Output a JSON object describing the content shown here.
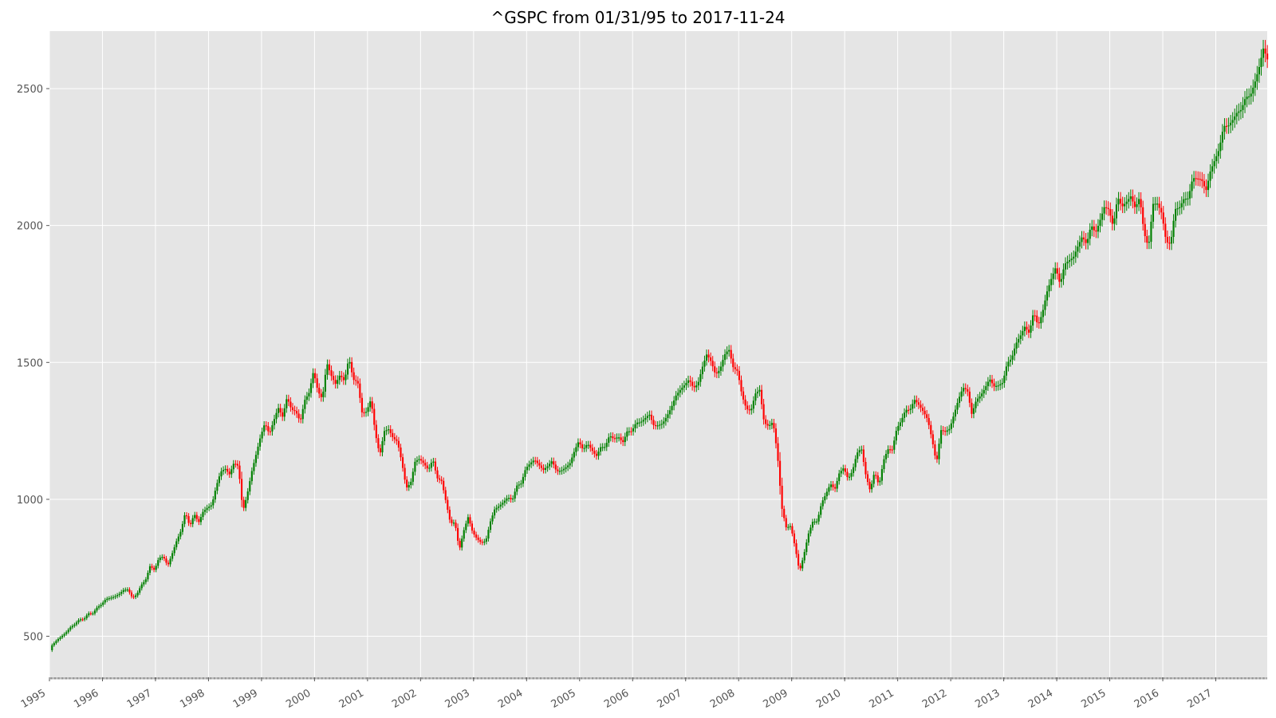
{
  "chart_data": {
    "type": "candlestick",
    "title": "^GSPC from 01/31/95 to 2017-11-24",
    "xlabel": "",
    "ylabel": "",
    "ylim": [
      350,
      2710
    ],
    "yticks": [
      500,
      1000,
      1500,
      2000,
      2500
    ],
    "xlim": [
      1995.0,
      2017.97
    ],
    "year_ticks": [
      "1995",
      "1996",
      "1997",
      "1998",
      "1999",
      "2000",
      "2001",
      "2002",
      "2003",
      "2004",
      "2005",
      "2006",
      "2007",
      "2008",
      "2009",
      "2010",
      "2011",
      "2012",
      "2013",
      "2014",
      "2015",
      "2016",
      "2017"
    ],
    "grid": true,
    "colors": {
      "up": "#008000",
      "down": "#ff0000",
      "background": "#e5e5e5",
      "grid": "#ffffff"
    },
    "monthly_close_estimate": [
      470,
      487,
      500,
      514,
      533,
      544,
      562,
      561,
      584,
      582,
      605,
      616,
      636,
      640,
      645,
      654,
      669,
      671,
      640,
      652,
      687,
      705,
      757,
      741,
      786,
      791,
      757,
      801,
      848,
      885,
      954,
      900,
      947,
      915,
      955,
      970,
      980,
      1049,
      1101,
      1112,
      1091,
      1134,
      1121,
      956,
      1018,
      1100,
      1164,
      1229,
      1279,
      1238,
      1287,
      1335,
      1301,
      1373,
      1328,
      1321,
      1283,
      1362,
      1389,
      1469,
      1394,
      1366,
      1499,
      1452,
      1421,
      1455,
      1431,
      1518,
      1437,
      1429,
      1315,
      1320,
      1366,
      1240,
      1160,
      1249,
      1256,
      1224,
      1211,
      1134,
      1041,
      1060,
      1139,
      1148,
      1130,
      1107,
      1147,
      1077,
      1067,
      990,
      912,
      916,
      815,
      885,
      936,
      880,
      856,
      841,
      848,
      917,
      964,
      975,
      990,
      1008,
      996,
      1050,
      1058,
      1112,
      1131,
      1145,
      1126,
      1107,
      1121,
      1141,
      1102,
      1104,
      1115,
      1130,
      1174,
      1212,
      1181,
      1204,
      1180,
      1157,
      1191,
      1191,
      1234,
      1220,
      1229,
      1207,
      1249,
      1248,
      1280,
      1281,
      1295,
      1311,
      1270,
      1270,
      1277,
      1304,
      1336,
      1378,
      1400,
      1418,
      1438,
      1406,
      1421,
      1482,
      1530,
      1503,
      1455,
      1474,
      1527,
      1549,
      1481,
      1468,
      1378,
      1330,
      1323,
      1386,
      1400,
      1280,
      1267,
      1283,
      1166,
      969,
      896,
      903,
      826,
      735,
      798,
      873,
      919,
      919,
      987,
      1020,
      1057,
      1036,
      1096,
      1115,
      1074,
      1104,
      1169,
      1187,
      1089,
      1031,
      1102,
      1049,
      1141,
      1183,
      1181,
      1258,
      1286,
      1327,
      1326,
      1364,
      1345,
      1321,
      1292,
      1219,
      1131,
      1253,
      1247,
      1258,
      1312,
      1366,
      1408,
      1398,
      1310,
      1362,
      1379,
      1406,
      1441,
      1412,
      1416,
      1426,
      1498,
      1514,
      1569,
      1597,
      1631,
      1606,
      1686,
      1633,
      1682,
      1757,
      1806,
      1848,
      1783,
      1859,
      1872,
      1884,
      1924,
      1960,
      1931,
      2003,
      1972,
      2018,
      2068,
      2059,
      1995,
      2105,
      2068,
      2086,
      2107,
      2063,
      2104,
      1972,
      1920,
      2079,
      2080,
      2044,
      1940,
      1932,
      2060,
      2065,
      2097,
      2099,
      2174,
      2171,
      2168,
      2126,
      2199,
      2239,
      2279,
      2364,
      2363,
      2384,
      2412,
      2423,
      2470,
      2472,
      2519,
      2575,
      2648,
      2602
    ]
  }
}
